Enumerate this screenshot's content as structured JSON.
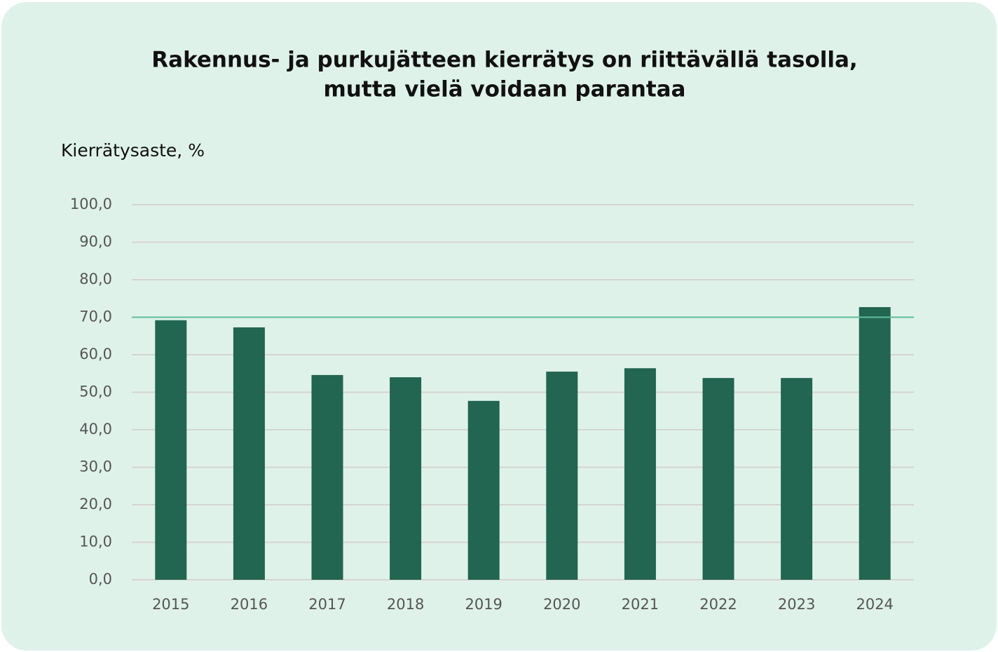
{
  "chart_data": {
    "type": "bar",
    "title": [
      "Rakennus- ja purkujätteen kierrätys on riittävällä tasolla,",
      "mutta vielä voidaan parantaa"
    ],
    "y_label": "Kierrätysaste, %",
    "categories": [
      "2015",
      "2016",
      "2017",
      "2018",
      "2019",
      "2020",
      "2021",
      "2022",
      "2023",
      "2024"
    ],
    "values": [
      69.2,
      67.3,
      54.6,
      54.0,
      47.7,
      55.5,
      56.4,
      53.8,
      53.8,
      72.7
    ],
    "color": "#226550",
    "reference_line": {
      "value": 70,
      "color": "#5dbf9a"
    },
    "ylim": [
      0,
      100
    ],
    "yticks": [
      {
        "value": 0,
        "label": "0,0"
      },
      {
        "value": 10,
        "label": "10,0"
      },
      {
        "value": 20,
        "label": "20,0"
      },
      {
        "value": 30,
        "label": "30,0"
      },
      {
        "value": 40,
        "label": "40,0"
      },
      {
        "value": 50,
        "label": "50,0"
      },
      {
        "value": 60,
        "label": "60,0"
      },
      {
        "value": 70,
        "label": "70,0"
      },
      {
        "value": 80,
        "label": "80,0"
      },
      {
        "value": 90,
        "label": "90,0"
      },
      {
        "value": 100,
        "label": "100,0"
      }
    ],
    "grid": true
  }
}
